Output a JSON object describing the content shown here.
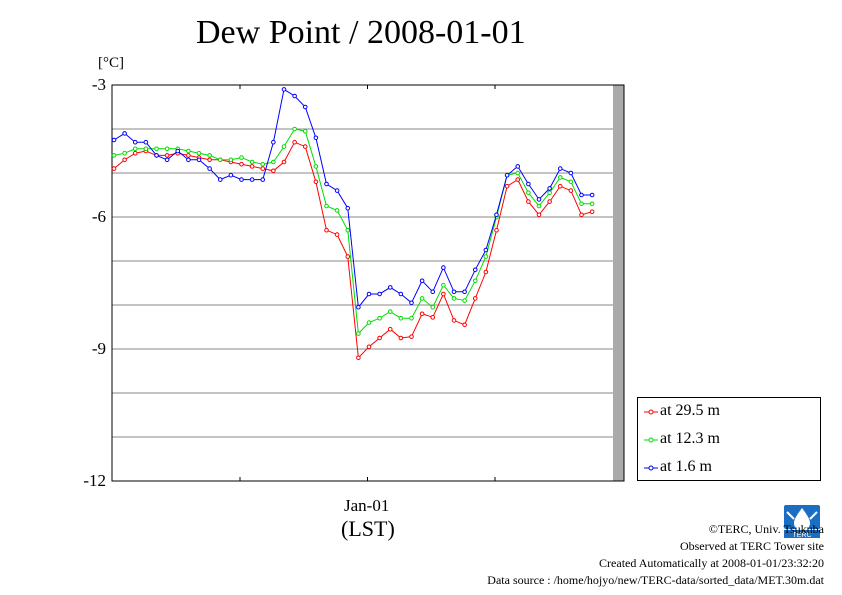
{
  "title": "Dew Point / 2008-01-01",
  "unit_label": "[°C]",
  "x_tick_label": "Jan-01",
  "x_axis_title": "(LST)",
  "legend": [
    {
      "label": "at 29.5 m",
      "color": "#ff0000"
    },
    {
      "label": "at 12.3 m",
      "color": "#00dd00"
    },
    {
      "label": "at 1.6 m",
      "color": "#0000ff"
    }
  ],
  "footer": {
    "copyright": "©TERC, Univ. Tsukuba",
    "site": "Observed at TERC Tower site",
    "created": "Created Automatically at 2008-01-01/23:32:20",
    "source": "Data source : /home/hojyo/new/TERC-data/sorted_data/MET.30m.dat"
  },
  "logo_text": "TERC",
  "chart_data": {
    "type": "line",
    "title": "Dew Point / 2008-01-01",
    "ylabel": "[°C]",
    "xlabel": "(LST)",
    "ylim": [
      -12,
      -3
    ],
    "y_ticks": [
      -3,
      -6,
      -9,
      -12
    ],
    "y_tick_labels": [
      "-3",
      "-6",
      "-9",
      "-12"
    ],
    "x_tick_labels": [
      "Jan-01"
    ],
    "x_hours_range": [
      0,
      24
    ],
    "x_hours": [
      0,
      0.5,
      1,
      1.5,
      2,
      2.5,
      3,
      3.5,
      4,
      4.5,
      5,
      5.5,
      6,
      6.5,
      7,
      7.5,
      8,
      8.5,
      9,
      9.5,
      10,
      10.5,
      11,
      11.5,
      12,
      12.5,
      13,
      13.5,
      14,
      14.5,
      15,
      15.5,
      16,
      16.5,
      17,
      17.5,
      18,
      18.5,
      19,
      19.5,
      20,
      20.5,
      21,
      21.5,
      22,
      22.5,
      23
    ],
    "grid": true,
    "legend_position": "bottom-right outside",
    "series": [
      {
        "name": "at 29.5 m",
        "color": "#ff0000",
        "values": [
          -4.9,
          -4.7,
          -4.55,
          -4.5,
          -4.6,
          -4.6,
          -4.55,
          -4.6,
          -4.65,
          -4.7,
          -4.7,
          -4.75,
          -4.8,
          -4.85,
          -4.9,
          -4.95,
          -4.75,
          -4.3,
          -4.4,
          -5.2,
          -6.3,
          -6.4,
          -6.9,
          -9.2,
          -8.95,
          -8.75,
          -8.55,
          -8.75,
          -8.72,
          -8.2,
          -8.28,
          -7.75,
          -8.35,
          -8.45,
          -7.85,
          -7.25,
          -6.3,
          -5.3,
          -5.15,
          -5.65,
          -5.95,
          -5.65,
          -5.3,
          -5.4,
          -5.95,
          -5.88,
          null
        ]
      },
      {
        "name": "at 12.3 m",
        "color": "#00dd00",
        "values": [
          -4.6,
          -4.55,
          -4.45,
          -4.45,
          -4.45,
          -4.45,
          -4.45,
          -4.5,
          -4.55,
          -4.6,
          -4.7,
          -4.7,
          -4.65,
          -4.75,
          -4.8,
          -4.75,
          -4.4,
          -4.0,
          -4.05,
          -4.85,
          -5.75,
          -5.85,
          -6.3,
          -8.65,
          -8.4,
          -8.3,
          -8.15,
          -8.3,
          -8.3,
          -7.85,
          -8.05,
          -7.55,
          -7.85,
          -7.9,
          -7.45,
          -6.9,
          -6.0,
          -5.05,
          -5.0,
          -5.45,
          -5.75,
          -5.45,
          -5.1,
          -5.2,
          -5.7,
          -5.7,
          null
        ]
      },
      {
        "name": "at 1.6 m",
        "color": "#0000ff",
        "values": [
          -4.25,
          -4.1,
          -4.3,
          -4.3,
          -4.6,
          -4.7,
          -4.5,
          -4.7,
          -4.7,
          -4.9,
          -5.15,
          -5.05,
          -5.15,
          -5.15,
          -5.15,
          -4.3,
          -3.1,
          -3.25,
          -3.5,
          -4.2,
          -5.25,
          -5.4,
          -5.8,
          -8.05,
          -7.75,
          -7.75,
          -7.6,
          -7.75,
          -7.95,
          -7.45,
          -7.7,
          -7.15,
          -7.7,
          -7.7,
          -7.2,
          -6.75,
          -5.95,
          -5.05,
          -4.85,
          -5.25,
          -5.6,
          -5.35,
          -4.9,
          -5.0,
          -5.5,
          -5.5,
          null
        ]
      }
    ]
  }
}
